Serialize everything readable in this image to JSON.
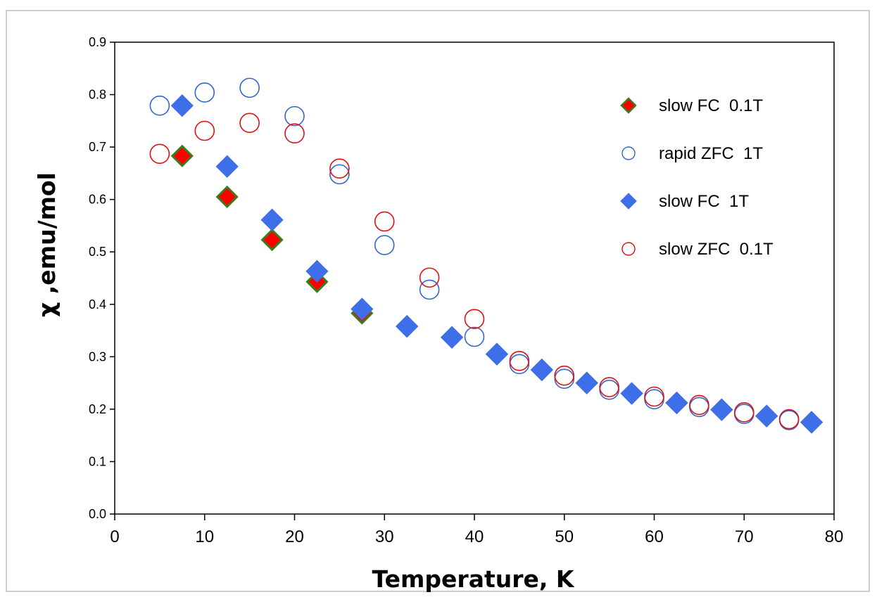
{
  "chart_data": {
    "type": "scatter",
    "title": "",
    "xlabel": "Temperature, K",
    "ylabel": "χ ,emu/mol",
    "xlim": [
      0,
      80
    ],
    "ylim": [
      0,
      0.9
    ],
    "x_ticks": [
      0,
      10,
      20,
      30,
      40,
      50,
      60,
      70,
      80
    ],
    "y_ticks": [
      0.0,
      0.1,
      0.2,
      0.3,
      0.4,
      0.5,
      0.6,
      0.7,
      0.8,
      0.9
    ],
    "x_tick_labels": [
      "0",
      "10",
      "20",
      "30",
      "40",
      "50",
      "60",
      "70",
      "80"
    ],
    "y_tick_labels": [
      "0.0",
      "0.1",
      "0.2",
      "0.3",
      "0.4",
      "0.5",
      "0.6",
      "0.7",
      "0.8",
      "0.9"
    ],
    "grid": false,
    "legend_position": "top-right",
    "series": [
      {
        "name": "slow FC  0.1T",
        "marker": "diamond",
        "fill": "#ff0000",
        "stroke": "#3a7d1e",
        "points": [
          [
            7.5,
            0.683
          ],
          [
            12.5,
            0.605
          ],
          [
            17.5,
            0.523
          ],
          [
            22.5,
            0.443
          ],
          [
            27.5,
            0.383
          ],
          [
            32.5,
            0.358
          ],
          [
            37.5,
            0.337
          ],
          [
            42.5,
            0.305
          ],
          [
            47.5,
            0.275
          ],
          [
            52.5,
            0.25
          ],
          [
            57.5,
            0.23
          ],
          [
            62.5,
            0.212
          ],
          [
            67.5,
            0.199
          ],
          [
            72.5,
            0.187
          ],
          [
            77.5,
            0.175
          ]
        ]
      },
      {
        "name": "rapid ZFC  1T",
        "marker": "circle",
        "fill": "none",
        "stroke": "#3366cc",
        "points": [
          [
            5,
            0.779
          ],
          [
            10,
            0.804
          ],
          [
            15,
            0.813
          ],
          [
            20,
            0.759
          ],
          [
            25,
            0.648
          ],
          [
            30,
            0.513
          ],
          [
            35,
            0.428
          ],
          [
            40,
            0.338
          ],
          [
            45,
            0.286
          ],
          [
            50,
            0.258
          ],
          [
            55,
            0.237
          ],
          [
            60,
            0.219
          ],
          [
            65,
            0.204
          ],
          [
            70,
            0.191
          ],
          [
            75,
            0.179
          ]
        ]
      },
      {
        "name": "slow FC  1T",
        "marker": "diamond",
        "fill": "#3f6fe8",
        "stroke": "#3f6fe8",
        "points": [
          [
            7.5,
            0.779
          ],
          [
            12.5,
            0.663
          ],
          [
            17.5,
            0.561
          ],
          [
            22.5,
            0.463
          ],
          [
            27.5,
            0.391
          ],
          [
            32.5,
            0.358
          ],
          [
            37.5,
            0.337
          ],
          [
            42.5,
            0.305
          ],
          [
            47.5,
            0.275
          ],
          [
            52.5,
            0.25
          ],
          [
            57.5,
            0.23
          ],
          [
            62.5,
            0.212
          ],
          [
            67.5,
            0.199
          ],
          [
            72.5,
            0.187
          ],
          [
            77.5,
            0.175
          ]
        ]
      },
      {
        "name": "slow ZFC  0.1T",
        "marker": "circle",
        "fill": "none",
        "stroke": "#e01010",
        "points": [
          [
            5,
            0.687
          ],
          [
            10,
            0.731
          ],
          [
            15,
            0.746
          ],
          [
            20,
            0.726
          ],
          [
            25,
            0.659
          ],
          [
            30,
            0.558
          ],
          [
            35,
            0.451
          ],
          [
            40,
            0.372
          ],
          [
            45,
            0.292
          ],
          [
            50,
            0.264
          ],
          [
            55,
            0.242
          ],
          [
            60,
            0.224
          ],
          [
            65,
            0.208
          ],
          [
            70,
            0.194
          ],
          [
            75,
            0.181
          ]
        ]
      }
    ]
  }
}
